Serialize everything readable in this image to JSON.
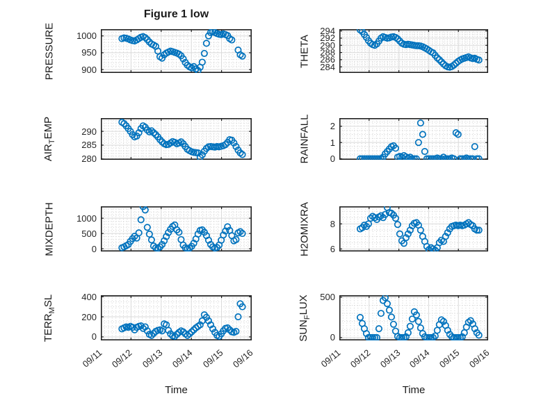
{
  "title": "Figure 1 low",
  "xlabel": "Time",
  "marker_color": "#0072BD",
  "axis_color": "#1f1f1f",
  "grid_color": "#d9d9d9",
  "minor_grid_color": "#cfcfcf",
  "x_tick_labels": [
    "09/11",
    "09/12",
    "09/13",
    "09/14",
    "09/15",
    "09/16"
  ],
  "chart_data": {
    "type": "scatter",
    "marker": "open-circle",
    "xlim": [
      0,
      5
    ],
    "xticks_days": [
      0,
      1,
      2,
      3,
      4,
      5
    ],
    "xminor_step": 0.125,
    "time_days": [
      0.7,
      0.77,
      0.84,
      0.91,
      0.98,
      1.05,
      1.12,
      1.19,
      1.26,
      1.33,
      1.4,
      1.47,
      1.54,
      1.61,
      1.68,
      1.75,
      1.82,
      1.89,
      1.96,
      2.03,
      2.1,
      2.17,
      2.24,
      2.31,
      2.38,
      2.45,
      2.52,
      2.59,
      2.66,
      2.73,
      2.8,
      2.87,
      2.94,
      3.01,
      3.08,
      3.15,
      3.22,
      3.29,
      3.36,
      3.43,
      3.5,
      3.57,
      3.64,
      3.71,
      3.78,
      3.85,
      3.92,
      3.99,
      4.06,
      4.13,
      4.2,
      4.27,
      4.34,
      4.41,
      4.48,
      4.55,
      4.62,
      4.69
    ],
    "series": [
      {
        "name": "PRESSURE",
        "ylabel_parts": [
          {
            "t": "PRESSURE"
          }
        ],
        "row": 0,
        "col": 0,
        "yticks": [
          900,
          950,
          1000
        ],
        "ylim": [
          890,
          1020
        ],
        "yminor_step": 10,
        "values": [
          992,
          994,
          993,
          991,
          988,
          986,
          985,
          988,
          992,
          996,
          998,
          995,
          989,
          982,
          976,
          973,
          969,
          955,
          938,
          934,
          944,
          949,
          952,
          955,
          953,
          951,
          949,
          946,
          941,
          932,
          921,
          913,
          908,
          905,
          909,
          902,
          897,
          907,
          922,
          948,
          978,
          1000,
          1010,
          1013,
          1010,
          1007,
          1005,
          1004,
          1006,
          1004,
          1001,
          992,
          988,
          null,
          null,
          958,
          944,
          940
        ]
      },
      {
        "name": "THETA",
        "ylabel_parts": [
          {
            "t": "THETA"
          }
        ],
        "row": 0,
        "col": 1,
        "yticks": [
          284,
          286,
          288,
          290,
          292,
          294
        ],
        "ylim": [
          282.3,
          294.5
        ],
        "yminor_step": 0.5,
        "values": [
          294.3,
          293.8,
          293.0,
          292.2,
          291.3,
          290.6,
          290.2,
          290.0,
          290.4,
          291.2,
          292.0,
          292.4,
          292.2,
          292.0,
          292.1,
          292.3,
          292.4,
          292.2,
          291.8,
          291.2,
          290.6,
          290.3,
          290.2,
          290.3,
          290.2,
          290.1,
          290.0,
          289.9,
          289.9,
          289.8,
          289.6,
          289.3,
          289.0,
          288.6,
          288.2,
          287.9,
          287.2,
          286.5,
          286.0,
          285.4,
          284.8,
          284.3,
          284.0,
          283.9,
          284.1,
          284.5,
          285.0,
          285.5,
          285.9,
          286.2,
          286.4,
          286.6,
          286.8,
          286.5,
          286.3,
          286.4,
          286.1,
          285.9
        ]
      },
      {
        "name": "AIR_TEMP",
        "ylabel_parts": [
          {
            "t": "AIR"
          },
          {
            "t": "T",
            "sub": true
          },
          {
            "t": "EMP"
          }
        ],
        "row": 1,
        "col": 0,
        "yticks": [
          280,
          285,
          290
        ],
        "ylim": [
          279.7,
          294.8
        ],
        "yminor_step": 1,
        "values": [
          293.3,
          292.8,
          292.0,
          291.0,
          290.0,
          288.8,
          288.0,
          288.3,
          289.5,
          291.0,
          292.0,
          291.5,
          290.5,
          289.8,
          290.2,
          289.5,
          288.8,
          288.0,
          287.0,
          286.2,
          285.5,
          285.2,
          285.3,
          285.8,
          286.3,
          286.0,
          285.5,
          285.8,
          286.2,
          285.5,
          284.5,
          283.5,
          283.0,
          282.6,
          282.4,
          282.3,
          282.2,
          280.6,
          281.5,
          282.8,
          283.8,
          284.4,
          284.5,
          284.4,
          284.3,
          284.5,
          284.4,
          284.6,
          284.8,
          285.2,
          286.0,
          287.0,
          286.8,
          285.8,
          284.5,
          283.2,
          282.2,
          281.6
        ]
      },
      {
        "name": "RAINFALL",
        "ylabel_parts": [
          {
            "t": "RAINFALL"
          }
        ],
        "row": 1,
        "col": 1,
        "yticks": [
          0,
          1,
          2
        ],
        "ylim": [
          -0.06,
          2.5
        ],
        "yminor_step": 0.25,
        "values": [
          0,
          0,
          0,
          0,
          0,
          0,
          0,
          0,
          0,
          0,
          0,
          0.1,
          0.3,
          0.45,
          0.6,
          0.75,
          0.8,
          0.65,
          0.1,
          0.15,
          0.1,
          0.2,
          0.12,
          0.05,
          0.1,
          0,
          0,
          0,
          1.0,
          2.2,
          1.5,
          0.45,
          0,
          0,
          0,
          0,
          0,
          0.05,
          0,
          0,
          0.1,
          0,
          0,
          0,
          0.05,
          0,
          1.6,
          1.5,
          0,
          0,
          0,
          0.05,
          0,
          0,
          0,
          0.75,
          0,
          0
        ]
      },
      {
        "name": "MIXDEPTH",
        "ylabel_parts": [
          {
            "t": "MIXDEPTH"
          }
        ],
        "row": 2,
        "col": 0,
        "yticks": [
          0,
          500,
          1000
        ],
        "ylim": [
          -90,
          1390
        ],
        "yminor_step": 100,
        "values": [
          30,
          60,
          100,
          140,
          240,
          330,
          410,
          350,
          520,
          950,
          1380,
          1270,
          700,
          480,
          290,
          90,
          30,
          15,
          60,
          140,
          260,
          400,
          530,
          640,
          730,
          780,
          620,
          540,
          300,
          120,
          30,
          10,
          20,
          80,
          180,
          320,
          480,
          600,
          620,
          540,
          430,
          280,
          140,
          60,
          20,
          40,
          120,
          280,
          450,
          580,
          720,
          600,
          430,
          260,
          300,
          520,
          560,
          500
        ]
      },
      {
        "name": "H2OMIXRA",
        "ylabel_parts": [
          {
            "t": "H2OMIXRA"
          }
        ],
        "row": 2,
        "col": 1,
        "yticks": [
          6,
          8
        ],
        "ylim": [
          5.8,
          9.4
        ],
        "yminor_step": 0.5,
        "values": [
          7.6,
          7.7,
          7.9,
          7.8,
          8.0,
          8.45,
          8.6,
          8.5,
          8.35,
          8.55,
          8.65,
          8.5,
          8.75,
          9.3,
          8.9,
          8.85,
          8.7,
          8.45,
          7.95,
          7.2,
          6.65,
          6.45,
          6.9,
          7.2,
          7.5,
          7.85,
          8.05,
          8.1,
          7.9,
          7.5,
          7.0,
          6.6,
          6.2,
          5.95,
          6.1,
          6.0,
          5.9,
          6.1,
          6.5,
          6.7,
          6.6,
          7.0,
          7.3,
          7.6,
          7.8,
          7.85,
          7.9,
          7.85,
          7.9,
          7.85,
          7.9,
          8.0,
          8.1,
          7.95,
          7.85,
          7.6,
          7.5,
          7.5
        ]
      },
      {
        "name": "TERR_MSL",
        "ylabel_parts": [
          {
            "t": "TERR"
          },
          {
            "t": "M",
            "sub": true
          },
          {
            "t": "SL"
          }
        ],
        "row": 3,
        "col": 0,
        "yticks": [
          0,
          200,
          400
        ],
        "ylim": [
          -35,
          415
        ],
        "yminor_step": 50,
        "values": [
          80,
          90,
          100,
          95,
          105,
          95,
          70,
          95,
          105,
          110,
          85,
          100,
          60,
          25,
          15,
          35,
          55,
          65,
          70,
          60,
          130,
          120,
          65,
          30,
          10,
          5,
          25,
          45,
          60,
          50,
          30,
          15,
          30,
          50,
          70,
          90,
          105,
          120,
          160,
          220,
          195,
          160,
          120,
          80,
          45,
          15,
          5,
          30,
          60,
          85,
          90,
          70,
          50,
          45,
          55,
          200,
          330,
          300
        ]
      },
      {
        "name": "SUN_FLUX",
        "ylabel_parts": [
          {
            "t": "SUN"
          },
          {
            "t": "F",
            "sub": true
          },
          {
            "t": "LUX"
          }
        ],
        "row": 3,
        "col": 1,
        "yticks": [
          0,
          500
        ],
        "ylim": [
          -35,
          525
        ],
        "yminor_step": 100,
        "values": [
          250,
          175,
          110,
          50,
          0,
          0,
          0,
          0,
          0,
          110,
          300,
          460,
          495,
          420,
          340,
          255,
          165,
          80,
          15,
          0,
          0,
          0,
          10,
          60,
          140,
          230,
          320,
          280,
          200,
          120,
          50,
          10,
          0,
          0,
          0,
          0,
          20,
          90,
          160,
          220,
          200,
          150,
          90,
          40,
          10,
          0,
          0,
          0,
          0,
          10,
          60,
          130,
          190,
          210,
          170,
          110,
          60,
          30
        ]
      }
    ]
  }
}
